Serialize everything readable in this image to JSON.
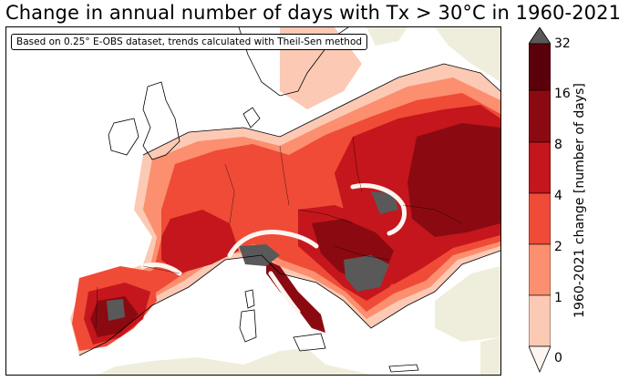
{
  "title": "Change in annual number of days with Tx > 30°C in 1960-2021",
  "note": "Based on 0.25° E-OBS dataset, trends calculated with Theil-Sen method",
  "colorbar": {
    "label": "1960-2021 change [number of days]",
    "ticks": [
      "0",
      "1",
      "2",
      "4",
      "8",
      "16",
      "32"
    ],
    "colors": [
      "#fff5f0",
      "#fcc9b4",
      "#fb8f6f",
      "#ef4b37",
      "#c4161c",
      "#8b0a12",
      "#5a000a"
    ],
    "no_data_color": "#595959",
    "land_no_data_color": "#efeedc",
    "sea_color": "#ffffff"
  }
}
